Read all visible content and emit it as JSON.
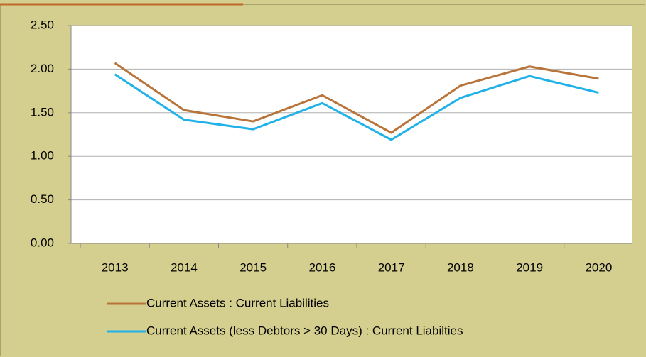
{
  "chart_data": {
    "type": "line",
    "categories": [
      "2013",
      "2014",
      "2015",
      "2016",
      "2017",
      "2018",
      "2019",
      "2020"
    ],
    "series": [
      {
        "name": "Current Assets : Current Liabilities",
        "color": "#b8743a",
        "values": [
          2.07,
          1.53,
          1.4,
          1.7,
          1.27,
          1.81,
          2.03,
          1.89
        ]
      },
      {
        "name": "Current Assets (less Debtors > 30 Days) : Current Liabilties",
        "color": "#1fb1e8",
        "values": [
          1.94,
          1.42,
          1.31,
          1.61,
          1.19,
          1.67,
          1.92,
          1.73
        ]
      }
    ],
    "ylim": [
      0,
      2.5
    ],
    "yticks": [
      {
        "value": 0,
        "label": "0.00"
      },
      {
        "value": 0.5,
        "label": "0.50"
      },
      {
        "value": 1,
        "label": "1.00"
      },
      {
        "value": 1.5,
        "label": "1.50"
      },
      {
        "value": 2,
        "label": "2.00"
      },
      {
        "value": 2.5,
        "label": "2.50"
      }
    ],
    "grid": true
  }
}
